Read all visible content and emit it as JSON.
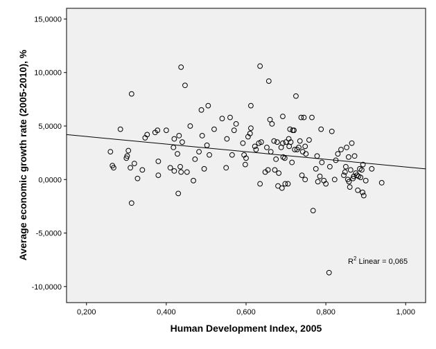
{
  "chart_data": {
    "type": "scatter",
    "title": "",
    "xlabel": "Human Development Index, 2005",
    "ylabel": "Average economic growth rate (2005-2010), %",
    "xlim": [
      0.15,
      1.05
    ],
    "ylim": [
      -11.5,
      16.0
    ],
    "xticks": [
      0.2,
      0.4,
      0.6,
      0.8,
      1.0
    ],
    "xtick_labels": [
      "0,200",
      "0,400",
      "0,600",
      "0,800",
      "1,000"
    ],
    "yticks": [
      15,
      10,
      5,
      0,
      -5,
      -10
    ],
    "ytick_labels": [
      "15,0000",
      "10,0000",
      "5,0000",
      "0,0000",
      "-5,0000",
      "-10,0000"
    ],
    "grid": false,
    "background": "#f0f0f0",
    "fit_line": {
      "type": "linear",
      "x": [
        0.15,
        1.05
      ],
      "y": [
        4.2,
        1.0
      ],
      "label_prefix": "R",
      "label_sup": "2",
      "label_text": " Linear = 0,065"
    },
    "points": [
      [
        0.26,
        2.6
      ],
      [
        0.265,
        1.3
      ],
      [
        0.268,
        1.1
      ],
      [
        0.285,
        4.7
      ],
      [
        0.3,
        2.0
      ],
      [
        0.302,
        2.2
      ],
      [
        0.305,
        2.7
      ],
      [
        0.31,
        1.1
      ],
      [
        0.313,
        8.0
      ],
      [
        0.313,
        -2.2
      ],
      [
        0.32,
        1.5
      ],
      [
        0.328,
        0.1
      ],
      [
        0.34,
        0.9
      ],
      [
        0.347,
        3.9
      ],
      [
        0.352,
        4.2
      ],
      [
        0.372,
        4.4
      ],
      [
        0.378,
        4.6
      ],
      [
        0.38,
        0.4
      ],
      [
        0.38,
        1.7
      ],
      [
        0.4,
        4.6
      ],
      [
        0.41,
        1.1
      ],
      [
        0.418,
        3.0
      ],
      [
        0.42,
        3.8
      ],
      [
        0.42,
        0.8
      ],
      [
        0.428,
        2.4
      ],
      [
        0.43,
        -1.3
      ],
      [
        0.432,
        4.1
      ],
      [
        0.435,
        1.2
      ],
      [
        0.437,
        10.5
      ],
      [
        0.437,
        0.7
      ],
      [
        0.44,
        3.5
      ],
      [
        0.447,
        8.8
      ],
      [
        0.452,
        0.7
      ],
      [
        0.46,
        5.0
      ],
      [
        0.468,
        -0.1
      ],
      [
        0.472,
        1.9
      ],
      [
        0.482,
        2.6
      ],
      [
        0.488,
        6.5
      ],
      [
        0.49,
        4.1
      ],
      [
        0.495,
        1.0
      ],
      [
        0.502,
        3.2
      ],
      [
        0.505,
        6.9
      ],
      [
        0.508,
        2.3
      ],
      [
        0.52,
        4.7
      ],
      [
        0.54,
        5.7
      ],
      [
        0.55,
        1.1
      ],
      [
        0.552,
        3.8
      ],
      [
        0.56,
        5.8
      ],
      [
        0.565,
        2.3
      ],
      [
        0.57,
        4.6
      ],
      [
        0.575,
        5.2
      ],
      [
        0.592,
        3.4
      ],
      [
        0.595,
        2.3
      ],
      [
        0.598,
        1.4
      ],
      [
        0.6,
        2.0
      ],
      [
        0.605,
        4.0
      ],
      [
        0.61,
        4.3
      ],
      [
        0.612,
        4.8
      ],
      [
        0.612,
        6.9
      ],
      [
        0.622,
        3.1
      ],
      [
        0.625,
        2.8
      ],
      [
        0.632,
        3.4
      ],
      [
        0.635,
        10.6
      ],
      [
        0.635,
        -0.4
      ],
      [
        0.638,
        3.5
      ],
      [
        0.648,
        0.7
      ],
      [
        0.652,
        3.0
      ],
      [
        0.655,
        0.9
      ],
      [
        0.657,
        9.2
      ],
      [
        0.66,
        5.6
      ],
      [
        0.662,
        2.6
      ],
      [
        0.665,
        5.2
      ],
      [
        0.67,
        3.6
      ],
      [
        0.672,
        0.9
      ],
      [
        0.675,
        1.9
      ],
      [
        0.678,
        3.5
      ],
      [
        0.68,
        -0.6
      ],
      [
        0.682,
        0.6
      ],
      [
        0.688,
        3.0
      ],
      [
        0.69,
        -0.8
      ],
      [
        0.692,
        3.4
      ],
      [
        0.692,
        5.9
      ],
      [
        0.693,
        2.1
      ],
      [
        0.697,
        2.0
      ],
      [
        0.698,
        -0.4
      ],
      [
        0.7,
        3.5
      ],
      [
        0.705,
        -0.4
      ],
      [
        0.707,
        3.8
      ],
      [
        0.708,
        3.1
      ],
      [
        0.71,
        4.7
      ],
      [
        0.712,
        3.5
      ],
      [
        0.715,
        1.6
      ],
      [
        0.717,
        4.6
      ],
      [
        0.72,
        4.6
      ],
      [
        0.722,
        2.8
      ],
      [
        0.725,
        7.8
      ],
      [
        0.728,
        2.8
      ],
      [
        0.732,
        3.0
      ],
      [
        0.735,
        3.6
      ],
      [
        0.738,
        5.8
      ],
      [
        0.74,
        0.4
      ],
      [
        0.742,
        2.6
      ],
      [
        0.745,
        5.8
      ],
      [
        0.748,
        0.0
      ],
      [
        0.748,
        3.1
      ],
      [
        0.75,
        2.4
      ],
      [
        0.758,
        3.7
      ],
      [
        0.765,
        5.8
      ],
      [
        0.768,
        -2.9
      ],
      [
        0.775,
        1.0
      ],
      [
        0.778,
        2.2
      ],
      [
        0.78,
        -0.2
      ],
      [
        0.785,
        0.3
      ],
      [
        0.788,
        4.7
      ],
      [
        0.79,
        1.6
      ],
      [
        0.795,
        -0.1
      ],
      [
        0.8,
        -0.4
      ],
      [
        0.808,
        -8.7
      ],
      [
        0.81,
        1.2
      ],
      [
        0.815,
        4.5
      ],
      [
        0.822,
        0.0
      ],
      [
        0.825,
        1.8
      ],
      [
        0.83,
        2.4
      ],
      [
        0.838,
        2.8
      ],
      [
        0.845,
        0.4
      ],
      [
        0.848,
        0.7
      ],
      [
        0.85,
        1.2
      ],
      [
        0.852,
        3.0
      ],
      [
        0.855,
        0.0
      ],
      [
        0.857,
        2.1
      ],
      [
        0.858,
        -0.2
      ],
      [
        0.86,
        -0.7
      ],
      [
        0.862,
        0.9
      ],
      [
        0.865,
        3.4
      ],
      [
        0.868,
        0.1
      ],
      [
        0.87,
        0.3
      ],
      [
        0.872,
        2.2
      ],
      [
        0.875,
        0.6
      ],
      [
        0.878,
        0.4
      ],
      [
        0.88,
        -1.0
      ],
      [
        0.882,
        0.3
      ],
      [
        0.885,
        1.0
      ],
      [
        0.887,
        0.2
      ],
      [
        0.89,
        0.9
      ],
      [
        0.892,
        -1.2
      ],
      [
        0.893,
        1.4
      ],
      [
        0.895,
        -1.5
      ],
      [
        0.9,
        -0.1
      ],
      [
        0.915,
        1.0
      ],
      [
        0.94,
        -0.3
      ]
    ]
  }
}
